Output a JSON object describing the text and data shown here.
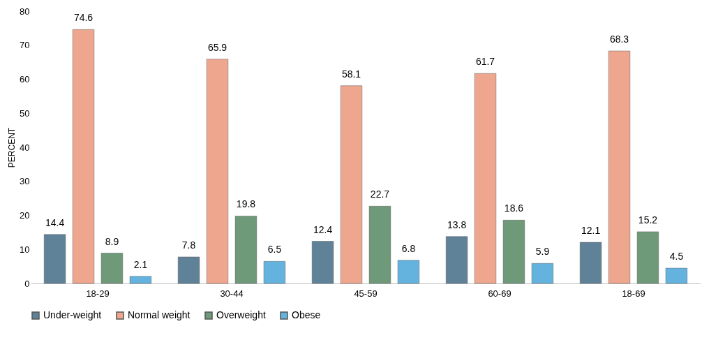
{
  "chart_data": {
    "type": "bar",
    "ylabel": "PERCENT",
    "categories": [
      "18-29",
      "30-44",
      "45-59",
      "60-69",
      "18-69"
    ],
    "series": [
      {
        "name": "Under-weight",
        "color": "#5f8299",
        "values": [
          14.4,
          7.8,
          12.4,
          13.8,
          12.1
        ]
      },
      {
        "name": "Normal weight",
        "color": "#eea68e",
        "values": [
          74.6,
          65.9,
          58.1,
          61.7,
          68.3
        ]
      },
      {
        "name": "Overweight",
        "color": "#6f9a7a",
        "values": [
          8.9,
          19.8,
          22.7,
          18.6,
          15.2
        ]
      },
      {
        "name": "Obese",
        "color": "#63b3de",
        "values": [
          2.1,
          6.5,
          6.8,
          5.9,
          4.5
        ]
      }
    ],
    "ylim": [
      0,
      80
    ],
    "yticks": [
      0,
      10,
      20,
      30,
      40,
      50,
      60,
      70,
      80
    ],
    "grid": false,
    "legend": "bottom",
    "data_labels": true
  }
}
